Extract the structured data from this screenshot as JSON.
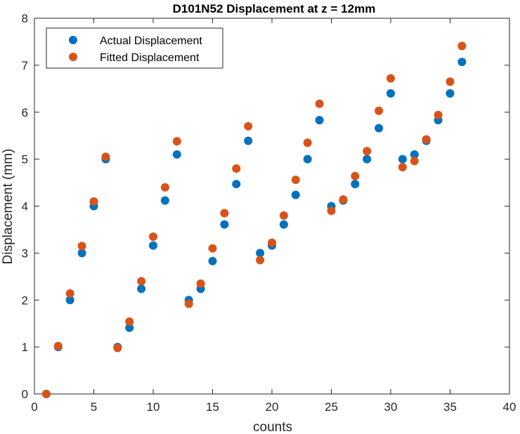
{
  "chart_data": {
    "type": "scatter",
    "title": "D101N52 Displacement at z = 12mm",
    "xlabel": "counts",
    "ylabel": "Displacement (mm)",
    "xlim": [
      0,
      40
    ],
    "ylim": [
      0,
      8
    ],
    "xticks": [
      0,
      5,
      10,
      15,
      20,
      25,
      30,
      35,
      40
    ],
    "yticks": [
      0,
      1,
      2,
      3,
      4,
      5,
      6,
      7,
      8
    ],
    "grid": false,
    "legend_position": "top-left",
    "x": [
      1,
      2,
      3,
      4,
      5,
      6,
      7,
      8,
      9,
      10,
      11,
      12,
      13,
      14,
      15,
      16,
      17,
      18,
      19,
      20,
      21,
      22,
      23,
      24,
      25,
      26,
      27,
      28,
      29,
      30,
      31,
      32,
      33,
      34,
      35,
      36
    ],
    "series": [
      {
        "name": "Actual Displacement",
        "color": "#0072BD",
        "values": [
          0,
          1.0,
          2.0,
          3.0,
          4.0,
          5.0,
          1.0,
          1.41,
          2.24,
          3.16,
          4.12,
          5.1,
          2.0,
          2.24,
          2.83,
          3.61,
          4.47,
          5.39,
          3.0,
          3.16,
          3.61,
          4.24,
          5.0,
          5.83,
          4.0,
          4.12,
          4.47,
          5.0,
          5.66,
          6.4,
          5.0,
          5.1,
          5.39,
          5.83,
          6.4,
          7.07
        ]
      },
      {
        "name": "Fitted Displacement",
        "color": "#D95319",
        "values": [
          0,
          1.02,
          2.14,
          3.15,
          4.1,
          5.05,
          0.98,
          1.54,
          2.4,
          3.35,
          4.4,
          5.38,
          1.92,
          2.35,
          3.1,
          3.85,
          4.8,
          5.7,
          2.85,
          3.22,
          3.8,
          4.56,
          5.35,
          6.18,
          3.9,
          4.14,
          4.64,
          5.17,
          6.03,
          6.72,
          4.83,
          4.96,
          5.42,
          5.94,
          6.65,
          7.41
        ]
      }
    ]
  }
}
